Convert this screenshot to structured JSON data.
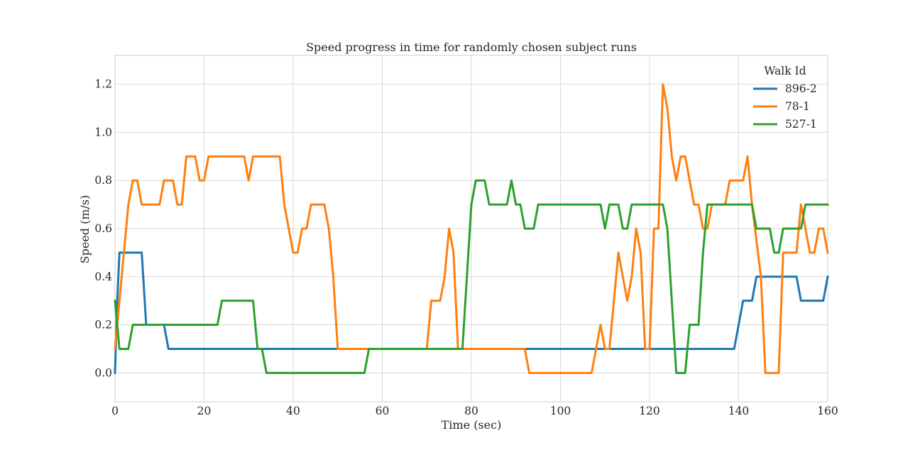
{
  "chart_data": {
    "type": "line",
    "title": "Speed progress in time for randomly chosen subject runs",
    "xlabel": "Time (sec)",
    "ylabel": "Speed (m/s)",
    "xlim": [
      0,
      160
    ],
    "ylim": [
      -0.12,
      1.32
    ],
    "xticks": [
      0,
      20,
      40,
      60,
      80,
      100,
      120,
      140,
      160
    ],
    "yticks": [
      0.0,
      0.2,
      0.4,
      0.6,
      0.8,
      1.0,
      1.2
    ],
    "xtick_labels": [
      "0",
      "20",
      "40",
      "60",
      "80",
      "100",
      "120",
      "140",
      "160"
    ],
    "ytick_labels": [
      "0.0",
      "0.2",
      "0.4",
      "0.6",
      "0.8",
      "1.0",
      "1.2"
    ],
    "grid": true,
    "legend": {
      "title": "Walk Id",
      "placement": "top-right"
    },
    "series": [
      {
        "name": "896-2",
        "color": "#1f77b4",
        "points": [
          [
            0,
            0.0
          ],
          [
            0.5,
            0.3
          ],
          [
            1,
            0.5
          ],
          [
            6,
            0.5
          ],
          [
            7,
            0.2
          ],
          [
            11,
            0.2
          ],
          [
            12,
            0.1
          ],
          [
            139,
            0.1
          ],
          [
            141,
            0.3
          ],
          [
            143,
            0.3
          ],
          [
            144,
            0.4
          ],
          [
            153,
            0.4
          ],
          [
            154,
            0.3
          ],
          [
            159,
            0.3
          ],
          [
            160,
            0.4
          ]
        ]
      },
      {
        "name": "78-1",
        "color": "#ff7f0e",
        "points": [
          [
            0,
            0.1
          ],
          [
            1,
            0.3
          ],
          [
            2,
            0.5
          ],
          [
            3,
            0.7
          ],
          [
            4,
            0.8
          ],
          [
            5,
            0.8
          ],
          [
            6,
            0.7
          ],
          [
            10,
            0.7
          ],
          [
            11,
            0.8
          ],
          [
            13,
            0.8
          ],
          [
            14,
            0.7
          ],
          [
            15,
            0.7
          ],
          [
            16,
            0.9
          ],
          [
            18,
            0.9
          ],
          [
            19,
            0.8
          ],
          [
            20,
            0.8
          ],
          [
            21,
            0.9
          ],
          [
            29,
            0.9
          ],
          [
            30,
            0.8
          ],
          [
            31,
            0.9
          ],
          [
            37,
            0.9
          ],
          [
            38,
            0.7
          ],
          [
            40,
            0.5
          ],
          [
            41,
            0.5
          ],
          [
            42,
            0.6
          ],
          [
            43,
            0.6
          ],
          [
            44,
            0.7
          ],
          [
            47,
            0.7
          ],
          [
            48,
            0.6
          ],
          [
            49,
            0.4
          ],
          [
            50,
            0.1
          ],
          [
            70,
            0.1
          ],
          [
            71,
            0.3
          ],
          [
            73,
            0.3
          ],
          [
            74,
            0.4
          ],
          [
            75,
            0.6
          ],
          [
            76,
            0.5
          ],
          [
            77,
            0.1
          ],
          [
            92,
            0.1
          ],
          [
            93,
            0.0
          ],
          [
            107,
            0.0
          ],
          [
            109,
            0.2
          ],
          [
            110,
            0.1
          ],
          [
            111,
            0.1
          ],
          [
            113,
            0.5
          ],
          [
            115,
            0.3
          ],
          [
            116,
            0.4
          ],
          [
            117,
            0.6
          ],
          [
            118,
            0.5
          ],
          [
            119,
            0.1
          ],
          [
            120,
            0.1
          ],
          [
            121,
            0.6
          ],
          [
            122,
            0.6
          ],
          [
            123,
            1.2
          ],
          [
            124,
            1.1
          ],
          [
            125,
            0.9
          ],
          [
            126,
            0.8
          ],
          [
            127,
            0.9
          ],
          [
            128,
            0.9
          ],
          [
            130,
            0.7
          ],
          [
            131,
            0.7
          ],
          [
            132,
            0.6
          ],
          [
            133,
            0.6
          ],
          [
            134,
            0.7
          ],
          [
            137,
            0.7
          ],
          [
            138,
            0.8
          ],
          [
            141,
            0.8
          ],
          [
            142,
            0.9
          ],
          [
            143,
            0.7
          ],
          [
            145,
            0.4
          ],
          [
            146,
            0.0
          ],
          [
            149,
            0.0
          ],
          [
            150,
            0.5
          ],
          [
            153,
            0.5
          ],
          [
            154,
            0.7
          ],
          [
            155,
            0.6
          ],
          [
            156,
            0.5
          ],
          [
            157,
            0.5
          ],
          [
            158,
            0.6
          ],
          [
            159,
            0.6
          ],
          [
            160,
            0.5
          ]
        ]
      },
      {
        "name": "527-1",
        "color": "#2ca02c",
        "points": [
          [
            0,
            0.3
          ],
          [
            1,
            0.1
          ],
          [
            3,
            0.1
          ],
          [
            4,
            0.2
          ],
          [
            23,
            0.2
          ],
          [
            24,
            0.3
          ],
          [
            31,
            0.3
          ],
          [
            32,
            0.1
          ],
          [
            33,
            0.1
          ],
          [
            34,
            0.0
          ],
          [
            56,
            0.0
          ],
          [
            57,
            0.1
          ],
          [
            78,
            0.1
          ],
          [
            80,
            0.7
          ],
          [
            81,
            0.8
          ],
          [
            83,
            0.8
          ],
          [
            84,
            0.7
          ],
          [
            88,
            0.7
          ],
          [
            89,
            0.8
          ],
          [
            90,
            0.7
          ],
          [
            91,
            0.7
          ],
          [
            92,
            0.6
          ],
          [
            94,
            0.6
          ],
          [
            95,
            0.7
          ],
          [
            109,
            0.7
          ],
          [
            110,
            0.6
          ],
          [
            111,
            0.7
          ],
          [
            113,
            0.7
          ],
          [
            114,
            0.6
          ],
          [
            115,
            0.6
          ],
          [
            116,
            0.7
          ],
          [
            123,
            0.7
          ],
          [
            124,
            0.6
          ],
          [
            125,
            0.3
          ],
          [
            126,
            0.0
          ],
          [
            128,
            0.0
          ],
          [
            129,
            0.2
          ],
          [
            131,
            0.2
          ],
          [
            132,
            0.5
          ],
          [
            133,
            0.7
          ],
          [
            143,
            0.7
          ],
          [
            144,
            0.6
          ],
          [
            147,
            0.6
          ],
          [
            148,
            0.5
          ],
          [
            149,
            0.5
          ],
          [
            150,
            0.6
          ],
          [
            154,
            0.6
          ],
          [
            155,
            0.7
          ],
          [
            160,
            0.7
          ]
        ]
      }
    ]
  }
}
